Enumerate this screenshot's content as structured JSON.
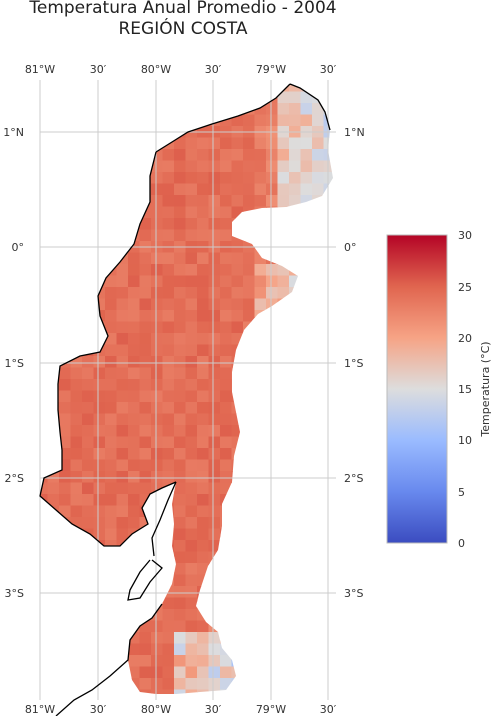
{
  "chart_data": {
    "type": "heatmap",
    "title": "Temperatura Anual Promedio - 2004",
    "subtitle": "REGIÓN COSTA",
    "lon_labels_top": [
      "81°W",
      "30′",
      "80°W",
      "30′",
      "79°W",
      "30′"
    ],
    "lon_labels_bottom": [
      "81°W",
      "30′",
      "80°W",
      "30′",
      "79°W",
      "30′"
    ],
    "lat_labels_left": [
      "1°N",
      "0°",
      "1°S",
      "2°S",
      "3°S"
    ],
    "lat_labels_right": [
      "1°N",
      "0°",
      "1°S",
      "2°S",
      "3°S"
    ],
    "colorbar": {
      "label": "Temperatura (°C)",
      "min": 0,
      "max": 30,
      "ticks": [
        "0",
        "5",
        "10",
        "15",
        "20",
        "25",
        "30"
      ],
      "colormap": "coolwarm"
    },
    "grid": true,
    "value_range_shown": [
      12,
      27
    ]
  }
}
